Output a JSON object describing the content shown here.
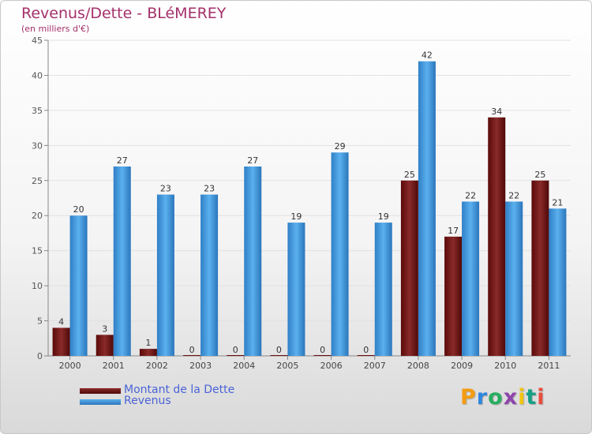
{
  "title": "Revenus/Dette - BLéMEREY",
  "subtitle": "(en milliers d'€)",
  "colors": {
    "dette": "#6b0f0f",
    "revenus": "#3d8fd6",
    "title": "#a4306a",
    "legend_text": "#4a63d6"
  },
  "legend": [
    {
      "label": "Montant de la Dette",
      "color": "#6b0f0f"
    },
    {
      "label": "Revenus",
      "color": "#3d8fd6"
    }
  ],
  "logo": {
    "letters": [
      "P",
      "r",
      "o",
      "x",
      "i",
      "t",
      "i"
    ],
    "colors": [
      "#f39c12",
      "#2e86de",
      "#27ae60",
      "#8e44ad",
      "#f1c40f",
      "#16a085",
      "#e74c3c"
    ]
  },
  "chart_data": {
    "type": "bar",
    "categories": [
      "2000",
      "2001",
      "2002",
      "2003",
      "2004",
      "2005",
      "2006",
      "2007",
      "2008",
      "2009",
      "2010",
      "2011"
    ],
    "series": [
      {
        "name": "Montant de la Dette",
        "values": [
          4,
          3,
          1,
          0,
          0,
          0,
          0,
          0,
          25,
          17,
          34,
          25
        ]
      },
      {
        "name": "Revenus",
        "values": [
          20,
          27,
          23,
          23,
          27,
          19,
          29,
          19,
          42,
          22,
          22,
          21
        ]
      }
    ],
    "ylim": [
      0,
      45
    ],
    "yticks": [
      0,
      5,
      10,
      15,
      20,
      25,
      30,
      35,
      40,
      45
    ],
    "grid": true,
    "legend_position": "bottom-left"
  }
}
